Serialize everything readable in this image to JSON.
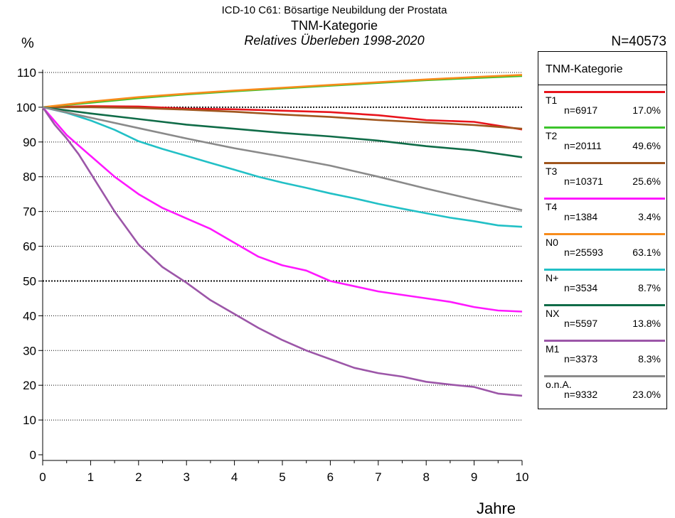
{
  "header": {
    "title": "ICD-10 C61: Bösartige Neubildung der Prostata",
    "subtitle": "TNM-Kategorie",
    "caption": "Relatives Überleben 1998-2020",
    "y_unit": "%",
    "n_total": "N=40573",
    "x_label": "Jahre"
  },
  "legend": {
    "title": "TNM-Kategorie"
  },
  "chart_data": {
    "type": "line",
    "xlabel": "Jahre",
    "ylabel": "%",
    "xlim": [
      0,
      10
    ],
    "ylim": [
      0,
      110
    ],
    "xticks": [
      0,
      1,
      2,
      3,
      4,
      5,
      6,
      7,
      8,
      9,
      10
    ],
    "yticks": [
      0,
      10,
      20,
      30,
      40,
      50,
      60,
      70,
      80,
      90,
      100,
      110
    ],
    "grid": "horizontal dotted, bold at 50 and 100",
    "legend_position": "right",
    "series": [
      {
        "name": "T1",
        "n": "n=6917",
        "pct": "17.0%",
        "color": "#e8141c",
        "x": [
          0,
          1,
          2,
          3,
          4,
          5,
          6,
          7,
          8,
          9,
          10
        ],
        "y": [
          100,
          100.3,
          100.2,
          99.6,
          99.4,
          99.0,
          98.6,
          97.7,
          96.3,
          95.8,
          93.6
        ]
      },
      {
        "name": "T2",
        "n": "n=20111",
        "pct": "49.6%",
        "color": "#3cc42c",
        "x": [
          0,
          1,
          2,
          3,
          4,
          5,
          6,
          7,
          8,
          9,
          10
        ],
        "y": [
          100,
          101.3,
          102.6,
          103.7,
          104.6,
          105.4,
          106.2,
          107.0,
          107.8,
          108.4,
          109.0
        ]
      },
      {
        "name": "T3",
        "n": "n=10371",
        "pct": "25.6%",
        "color": "#a0561e",
        "x": [
          0,
          1,
          2,
          3,
          4,
          5,
          6,
          7,
          8,
          9,
          10
        ],
        "y": [
          100,
          100.0,
          99.8,
          99.3,
          98.7,
          97.9,
          97.2,
          96.3,
          95.6,
          94.9,
          93.8
        ]
      },
      {
        "name": "T4",
        "n": "n=1384",
        "pct": "3.4%",
        "color": "#ff18ff",
        "x": [
          0,
          0.5,
          1,
          1.5,
          2,
          2.5,
          3,
          3.5,
          4,
          4.5,
          5,
          5.5,
          6,
          6.5,
          7,
          7.5,
          8,
          8.5,
          9,
          9.5,
          10
        ],
        "y": [
          100,
          92,
          86,
          80,
          75,
          71,
          68,
          65,
          61,
          57,
          54.5,
          53,
          50,
          48.5,
          47,
          46,
          45,
          44,
          42.5,
          41.5,
          41.2
        ]
      },
      {
        "name": "N0",
        "n": "n=25593",
        "pct": "63.1%",
        "color": "#f78c1c",
        "x": [
          0,
          1,
          2,
          3,
          4,
          5,
          6,
          7,
          8,
          9,
          10
        ],
        "y": [
          100,
          101.6,
          102.9,
          103.9,
          104.8,
          105.6,
          106.4,
          107.2,
          108.0,
          108.7,
          109.3
        ]
      },
      {
        "name": "N+",
        "n": "n=3534",
        "pct": "8.7%",
        "color": "#22c0c6",
        "x": [
          0,
          0.5,
          1,
          1.5,
          2,
          2.5,
          3,
          3.5,
          4,
          4.5,
          5,
          5.5,
          6,
          6.5,
          7,
          7.5,
          8,
          8.5,
          9,
          9.5,
          10
        ],
        "y": [
          100,
          98.4,
          96.2,
          93.5,
          90.2,
          88,
          86,
          84,
          82,
          80,
          78.3,
          76.8,
          75.2,
          73.8,
          72.2,
          70.8,
          69.5,
          68.2,
          67.2,
          66,
          65.6
        ]
      },
      {
        "name": "NX",
        "n": "n=5597",
        "pct": "13.8%",
        "color": "#106c48",
        "x": [
          0,
          1,
          2,
          3,
          4,
          5,
          6,
          7,
          8,
          9,
          10
        ],
        "y": [
          100,
          98.2,
          96.6,
          95,
          93.8,
          92.6,
          91.6,
          90.4,
          88.8,
          87.6,
          85.6
        ]
      },
      {
        "name": "M1",
        "n": "n=3373",
        "pct": "8.3%",
        "color": "#9c56a8",
        "x": [
          0,
          0.25,
          0.5,
          0.75,
          1,
          1.5,
          2,
          2.5,
          3,
          3.5,
          4,
          4.5,
          5,
          5.5,
          6,
          6.5,
          7,
          7.5,
          8,
          8.5,
          9,
          9.5,
          10
        ],
        "y": [
          100,
          95,
          91,
          86.5,
          81,
          70,
          60.5,
          54,
          49.5,
          44.5,
          40.5,
          36.5,
          33,
          30,
          27.5,
          25,
          23.5,
          22.5,
          21,
          20.2,
          19.5,
          17.6,
          17
        ]
      },
      {
        "name": "o.n.A.",
        "n": "n=9332",
        "pct": "23.0%",
        "color": "#8a8a8a",
        "x": [
          0,
          1,
          2,
          3,
          4,
          5,
          6,
          7,
          8,
          9,
          10
        ],
        "y": [
          100,
          97,
          94,
          91,
          88.2,
          85.8,
          83.2,
          80,
          76.6,
          73.4,
          70.4
        ]
      }
    ]
  }
}
